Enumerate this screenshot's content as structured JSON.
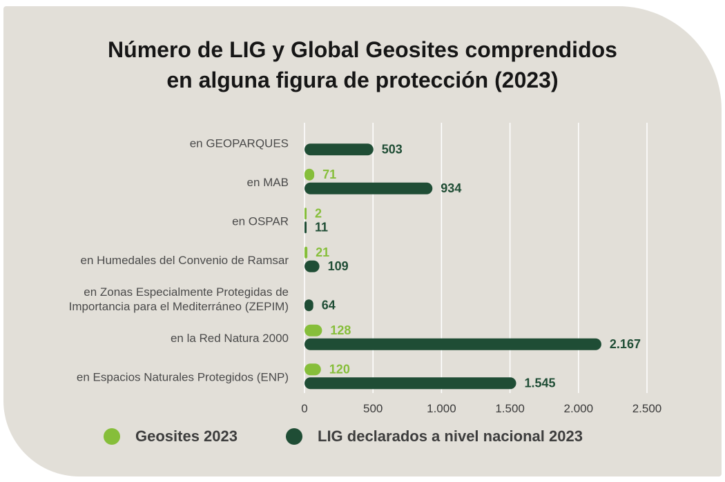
{
  "colors": {
    "geosites": "#86be3a",
    "lig": "#1f4d35",
    "grid": "#ffffff",
    "background": "#e2dfd8"
  },
  "chart_data": {
    "type": "bar",
    "orientation": "horizontal",
    "title_lines": [
      "Número de LIG y Global Geosites comprendidos",
      "en alguna figura de protección (2023)"
    ],
    "categories": [
      [
        "en GEOPARQUES"
      ],
      [
        "en MAB"
      ],
      [
        "en OSPAR"
      ],
      [
        "en Humedales del Convenio de Ramsar"
      ],
      [
        "en Zonas Especialmente Protegidas de",
        "Importancia para el Mediterráneo (ZEPIM)"
      ],
      [
        "en la Red Natura 2000"
      ],
      [
        "en Espacios Naturales Protegidos (ENP)"
      ]
    ],
    "series": [
      {
        "name": "Geosites 2023",
        "values": [
          null,
          71,
          2,
          21,
          null,
          128,
          120
        ],
        "labels": [
          null,
          "71",
          "2",
          "21",
          null,
          "128",
          "120"
        ]
      },
      {
        "name": "LIG declarados a nivel nacional 2023",
        "values": [
          503,
          934,
          11,
          109,
          64,
          2167,
          1545
        ],
        "labels": [
          "503",
          "934",
          "11",
          "109",
          "64",
          "2.167",
          "1.545"
        ]
      }
    ],
    "xlim": [
      0,
      2500
    ],
    "xticks": [
      0,
      500,
      1000,
      1500,
      2000,
      2500
    ],
    "xtick_labels": [
      "0",
      "500",
      "1.000",
      "1.500",
      "2.000",
      "2.500"
    ],
    "grid": true,
    "legend_position": "bottom"
  }
}
